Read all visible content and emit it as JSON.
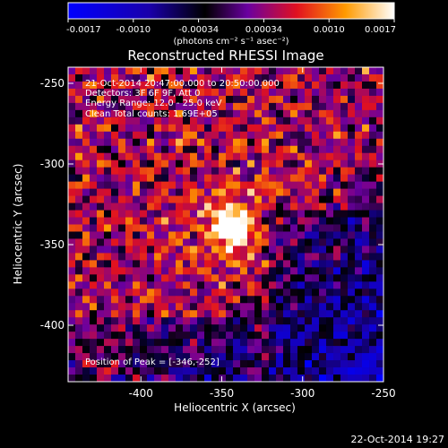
{
  "chart_data": {
    "type": "heatmap",
    "title": "Reconstructed RHESSI Image",
    "xlabel": "Heliocentric X (arcsec)",
    "ylabel": "Heliocentric Y (arcsec)",
    "xlim": [
      -445,
      -250
    ],
    "ylim": [
      -435,
      -240
    ],
    "x_ticks": [
      -400,
      -350,
      -300,
      -250
    ],
    "y_ticks": [
      -250,
      -300,
      -350,
      -400
    ],
    "colorbar": {
      "min": -0.0017,
      "max": 0.0017,
      "ticks": [
        "-0.0017",
        "-0.0010",
        "-0.00034",
        "0.00034",
        "0.0010",
        "0.0017"
      ],
      "unit_label": "(photons cm⁻² s⁻¹ asec⁻²)"
    },
    "annotations": {
      "time_range": "21-Oct-2014 20:47:00.000 to 20:50:00.000",
      "detectors": "Detectors: 3F 6F 9F, Att 0",
      "energy": "Energy Range: 12.0 - 25.0 keV",
      "clean": "Clean    Total counts: 1.69E+05",
      "peak": "Position of Peak = [-346,-252]"
    },
    "peak_position": [
      -346,
      -252
    ],
    "grid": false,
    "colormap": [
      "#0000ff",
      "#000000",
      "#8800ff",
      "#ff0000",
      "#ffaa00",
      "#ffffff"
    ]
  },
  "footer": {
    "timestamp": "22-Oct-2014 19:27"
  }
}
